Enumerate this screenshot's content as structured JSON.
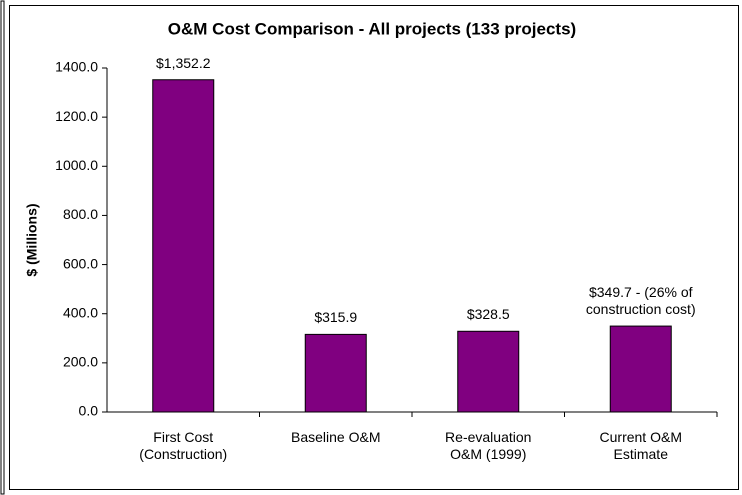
{
  "chart_data": {
    "type": "bar",
    "title": "O&M Cost Comparison - All projects (133 projects)",
    "y_label": "$ (Millions)",
    "categories": [
      "First Cost (Construction)",
      "Baseline O&M",
      "Re-evaluation O&M (1999)",
      "Current O&M Estimate"
    ],
    "values": [
      1352.2,
      315.9,
      328.5,
      349.7
    ],
    "value_labels": [
      "$1,352.2",
      "$315.9",
      "$328.5",
      "$349.7 - (26% of construction cost)"
    ],
    "color": "#800080",
    "ylim": [
      0,
      1400
    ],
    "yticks": [
      {
        "value": 0,
        "label": "0.0"
      },
      {
        "value": 200,
        "label": "200.0"
      },
      {
        "value": 400,
        "label": "400.0"
      },
      {
        "value": 600,
        "label": "600.0"
      },
      {
        "value": 800,
        "label": "800.0"
      },
      {
        "value": 1000,
        "label": "1000.0"
      },
      {
        "value": 1200,
        "label": "1200.0"
      },
      {
        "value": 1400,
        "label": "1400.0"
      }
    ],
    "grid": false
  }
}
